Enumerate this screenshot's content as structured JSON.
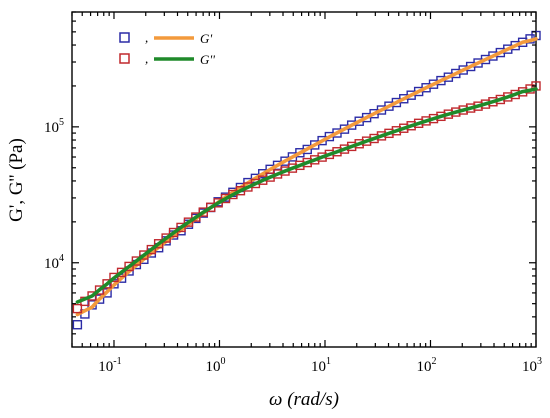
{
  "chart_data": {
    "type": "scatter",
    "xscale": "log",
    "yscale": "log",
    "xlim": [
      0.04,
      1000
    ],
    "ylim": [
      2400,
      700000
    ],
    "xlabel": "ω (rad/s)",
    "ylabel": "G', G'' (Pa)",
    "x_ticks": [
      {
        "value": 0.1,
        "base": "10",
        "exp": "-1"
      },
      {
        "value": 1,
        "base": "10",
        "exp": "0"
      },
      {
        "value": 10,
        "base": "10",
        "exp": "1"
      },
      {
        "value": 100,
        "base": "10",
        "exp": "2"
      },
      {
        "value": 1000,
        "base": "10",
        "exp": "3"
      }
    ],
    "y_ticks": [
      {
        "value": 10000,
        "base": "10",
        "exp": "4"
      },
      {
        "value": 100000,
        "base": "10",
        "exp": "5"
      }
    ],
    "legend_position": "top-left",
    "grid": false,
    "series": [
      {
        "name": "G'",
        "marker": "open-square",
        "marker_color": "#2b2ba6",
        "fit_color": "#f39a3c",
        "x": [
          0.045,
          0.053,
          0.062,
          0.073,
          0.086,
          0.1,
          0.118,
          0.139,
          0.163,
          0.192,
          0.226,
          0.265,
          0.312,
          0.367,
          0.432,
          0.508,
          0.597,
          0.702,
          0.826,
          0.971,
          1.14,
          1.34,
          1.58,
          1.86,
          2.19,
          2.57,
          3.02,
          3.55,
          4.18,
          4.91,
          5.78,
          6.79,
          7.99,
          9.39,
          11.0,
          13.0,
          15.3,
          17.9,
          21.1,
          24.8,
          29.2,
          34.3,
          40.4,
          47.5,
          55.8,
          65.6,
          77.2,
          90.8,
          106.8,
          125.6,
          147.7,
          173.7,
          204.2,
          240.2,
          282.4,
          332.1,
          390.6,
          459.3,
          540.1,
          635.2,
          747.0,
          878.5,
          1000
        ],
        "y": [
          3500,
          4200,
          4900,
          5400,
          6000,
          7000,
          7700,
          8700,
          9700,
          10600,
          11800,
          12900,
          14500,
          16000,
          17200,
          19200,
          21200,
          23200,
          25500,
          28100,
          30400,
          33000,
          35800,
          38900,
          41800,
          45200,
          48700,
          52100,
          55900,
          60100,
          64500,
          68200,
          73600,
          79200,
          84800,
          90100,
          96200,
          103000,
          110000,
          117000,
          125000,
          133000,
          142000,
          151000,
          161000,
          171000,
          182000,
          194000,
          206000,
          219000,
          232000,
          247000,
          262000,
          278000,
          295000,
          313000,
          332000,
          352000,
          373000,
          396000,
          419000,
          444000,
          470000
        ]
      },
      {
        "name": "G''",
        "marker": "open-square",
        "marker_color": "#c0282d",
        "fit_color": "#1f8a2a",
        "x": [
          0.045,
          0.053,
          0.062,
          0.073,
          0.086,
          0.1,
          0.118,
          0.139,
          0.163,
          0.192,
          0.226,
          0.265,
          0.312,
          0.367,
          0.432,
          0.508,
          0.597,
          0.702,
          0.826,
          0.971,
          1.14,
          1.34,
          1.58,
          1.86,
          2.19,
          2.57,
          3.02,
          3.55,
          4.18,
          4.91,
          5.78,
          6.79,
          7.99,
          9.39,
          11.0,
          13.0,
          15.3,
          17.9,
          21.1,
          24.8,
          29.2,
          34.3,
          40.4,
          47.5,
          55.8,
          65.6,
          77.2,
          90.8,
          106.8,
          125.6,
          147.7,
          173.7,
          204.2,
          240.2,
          282.4,
          332.1,
          390.6,
          459.3,
          540.1,
          635.2,
          747.0,
          878.5,
          1000
        ],
        "y": [
          4600,
          5200,
          5700,
          6300,
          7000,
          7800,
          8500,
          9400,
          10300,
          11400,
          12500,
          13800,
          15200,
          16700,
          18200,
          19900,
          21700,
          23600,
          25600,
          27600,
          29700,
          31800,
          33900,
          36100,
          38300,
          40500,
          42700,
          45000,
          47300,
          49700,
          52100,
          54600,
          57200,
          59900,
          62700,
          65600,
          68600,
          71800,
          75100,
          78500,
          82100,
          85800,
          89600,
          93600,
          97700,
          101900,
          106200,
          110600,
          115000,
          119500,
          124000,
          128500,
          133000,
          137500,
          142000,
          147000,
          153000,
          159000,
          166000,
          173000,
          181000,
          190000,
          200000
        ]
      }
    ]
  }
}
